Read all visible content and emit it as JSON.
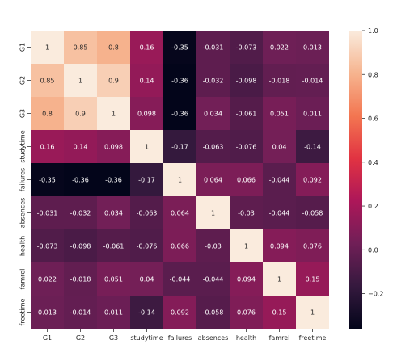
{
  "chart_data": {
    "type": "heatmap",
    "title": "",
    "xlabel": "",
    "ylabel": "",
    "x_labels": [
      "G1",
      "G2",
      "G3",
      "studytime",
      "failures",
      "absences",
      "health",
      "famrel",
      "freetime"
    ],
    "y_labels": [
      "G1",
      "G2",
      "G3",
      "studytime",
      "failures",
      "absences",
      "health",
      "famrel",
      "freetime"
    ],
    "values": [
      [
        1,
        0.85,
        0.8,
        0.16,
        -0.35,
        -0.031,
        -0.073,
        0.022,
        0.013
      ],
      [
        0.85,
        1,
        0.9,
        0.14,
        -0.36,
        -0.032,
        -0.098,
        -0.018,
        -0.014
      ],
      [
        0.8,
        0.9,
        1,
        0.098,
        -0.36,
        0.034,
        -0.061,
        0.051,
        0.011
      ],
      [
        0.16,
        0.14,
        0.098,
        1,
        -0.17,
        -0.063,
        -0.076,
        0.04,
        -0.14
      ],
      [
        -0.35,
        -0.36,
        -0.36,
        -0.17,
        1,
        0.064,
        0.066,
        -0.044,
        0.092
      ],
      [
        -0.031,
        -0.032,
        0.034,
        -0.063,
        0.064,
        1,
        -0.03,
        -0.044,
        -0.058
      ],
      [
        -0.073,
        -0.098,
        -0.061,
        -0.076,
        0.066,
        -0.03,
        1,
        0.094,
        0.076
      ],
      [
        0.022,
        -0.018,
        0.051,
        0.04,
        -0.044,
        -0.044,
        0.094,
        1,
        0.15
      ],
      [
        0.013,
        -0.014,
        0.011,
        -0.14,
        0.092,
        -0.058,
        0.076,
        0.15,
        1
      ]
    ],
    "annotations": [
      [
        "1",
        "0.85",
        "0.8",
        "0.16",
        "-0.35",
        "-0.031",
        "-0.073",
        "0.022",
        "0.013"
      ],
      [
        "0.85",
        "1",
        "0.9",
        "0.14",
        "-0.36",
        "-0.032",
        "-0.098",
        "-0.018",
        "-0.014"
      ],
      [
        "0.8",
        "0.9",
        "1",
        "0.098",
        "-0.36",
        "0.034",
        "-0.061",
        "0.051",
        "0.011"
      ],
      [
        "0.16",
        "0.14",
        "0.098",
        "1",
        "-0.17",
        "-0.063",
        "-0.076",
        "0.04",
        "-0.14"
      ],
      [
        "-0.35",
        "-0.36",
        "-0.36",
        "-0.17",
        "1",
        "0.064",
        "0.066",
        "-0.044",
        "0.092"
      ],
      [
        "-0.031",
        "-0.032",
        "0.034",
        "-0.063",
        "0.064",
        "1",
        "-0.03",
        "-0.044",
        "-0.058"
      ],
      [
        "-0.073",
        "-0.098",
        "-0.061",
        "-0.076",
        "0.066",
        "-0.03",
        "1",
        "0.094",
        "0.076"
      ],
      [
        "0.022",
        "-0.018",
        "0.051",
        "0.04",
        "-0.044",
        "-0.044",
        "0.094",
        "1",
        "0.15"
      ],
      [
        "0.013",
        "-0.014",
        "0.011",
        "-0.14",
        "0.092",
        "-0.058",
        "0.076",
        "0.15",
        "1"
      ]
    ],
    "colorbar": {
      "range": [
        -0.36,
        1.0
      ],
      "ticks": [
        1.0,
        0.8,
        0.6,
        0.4,
        0.2,
        0.0,
        -0.2
      ],
      "tick_labels": [
        "1.0",
        "0.8",
        "0.6",
        "0.4",
        "0.2",
        "0.0",
        "−0.2"
      ],
      "colormap": "rocket",
      "colormap_stops": [
        "#03051a",
        "#35193e",
        "#701f57",
        "#ad1759",
        "#e13342",
        "#f37651",
        "#f6b48f",
        "#faebdd"
      ]
    },
    "grid": false,
    "legend": "colorbar-right"
  }
}
